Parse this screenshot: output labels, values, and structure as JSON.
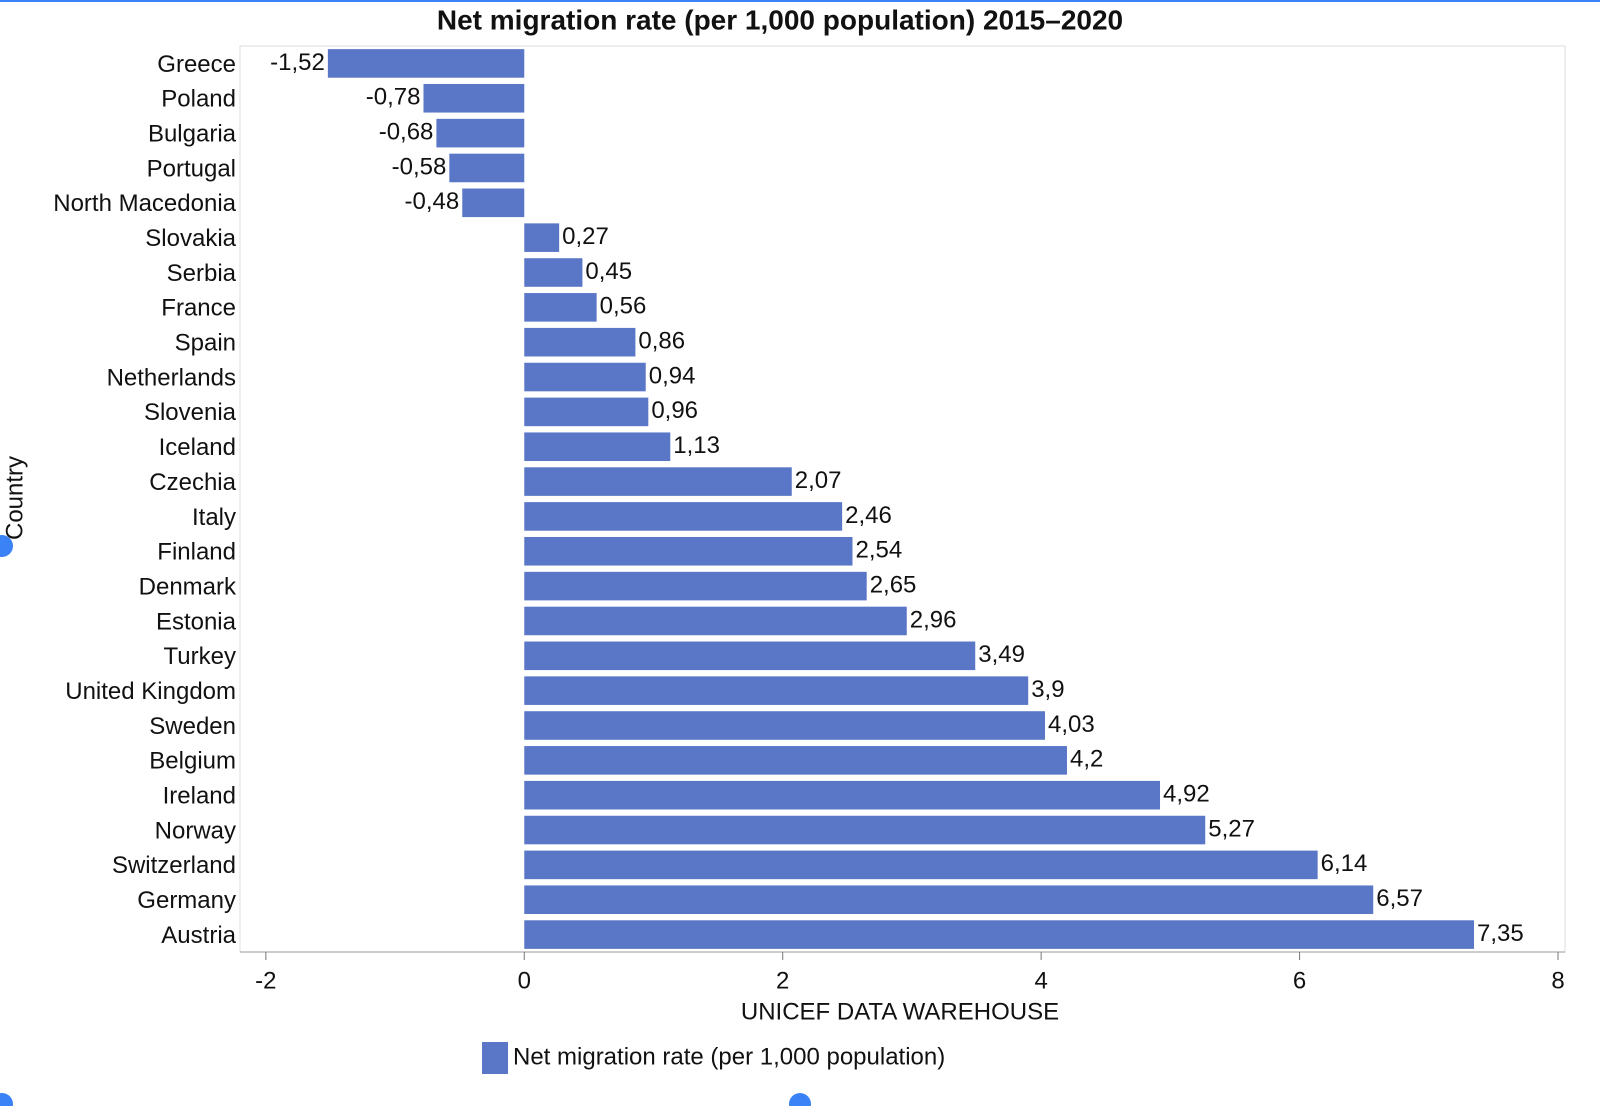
{
  "chart_data": {
    "type": "bar",
    "orientation": "horizontal",
    "title": "Net migration rate (per 1,000 population) 2015–2020",
    "xlabel": "UNICEF DATA WAREHOUSE",
    "ylabel": "Country",
    "categories": [
      "Greece",
      "Poland",
      "Bulgaria",
      "Portugal",
      "North Macedonia",
      "Slovakia",
      "Serbia",
      "France",
      "Spain",
      "Netherlands",
      "Slovenia",
      "Iceland",
      "Czechia",
      "Italy",
      "Finland",
      "Denmark",
      "Estonia",
      "Turkey",
      "United Kingdom",
      "Sweden",
      "Belgium",
      "Ireland",
      "Norway",
      "Switzerland",
      "Germany",
      "Austria"
    ],
    "series": [
      {
        "name": "Net migration rate (per 1,000 population)",
        "color": "#5a77c7",
        "values": [
          -1.52,
          -0.78,
          -0.68,
          -0.58,
          -0.48,
          0.27,
          0.45,
          0.56,
          0.86,
          0.94,
          0.96,
          1.13,
          2.07,
          2.46,
          2.54,
          2.65,
          2.96,
          3.49,
          3.9,
          4.03,
          4.2,
          4.92,
          5.27,
          6.14,
          6.57,
          7.35
        ],
        "value_labels": [
          "-1,52",
          "-0,78",
          "-0,68",
          "-0,58",
          "-0,48",
          "0,27",
          "0,45",
          "0,56",
          "0,86",
          "0,94",
          "0,96",
          "1,13",
          "2,07",
          "2,46",
          "2,54",
          "2,65",
          "2,96",
          "3,49",
          "3,9",
          "4,03",
          "4,2",
          "4,92",
          "5,27",
          "6,14",
          "6,57",
          "7,35"
        ]
      }
    ],
    "xlim": [
      -2.2,
      8
    ],
    "xticks": [
      -2,
      0,
      2,
      4,
      6,
      8
    ],
    "grid": false
  }
}
